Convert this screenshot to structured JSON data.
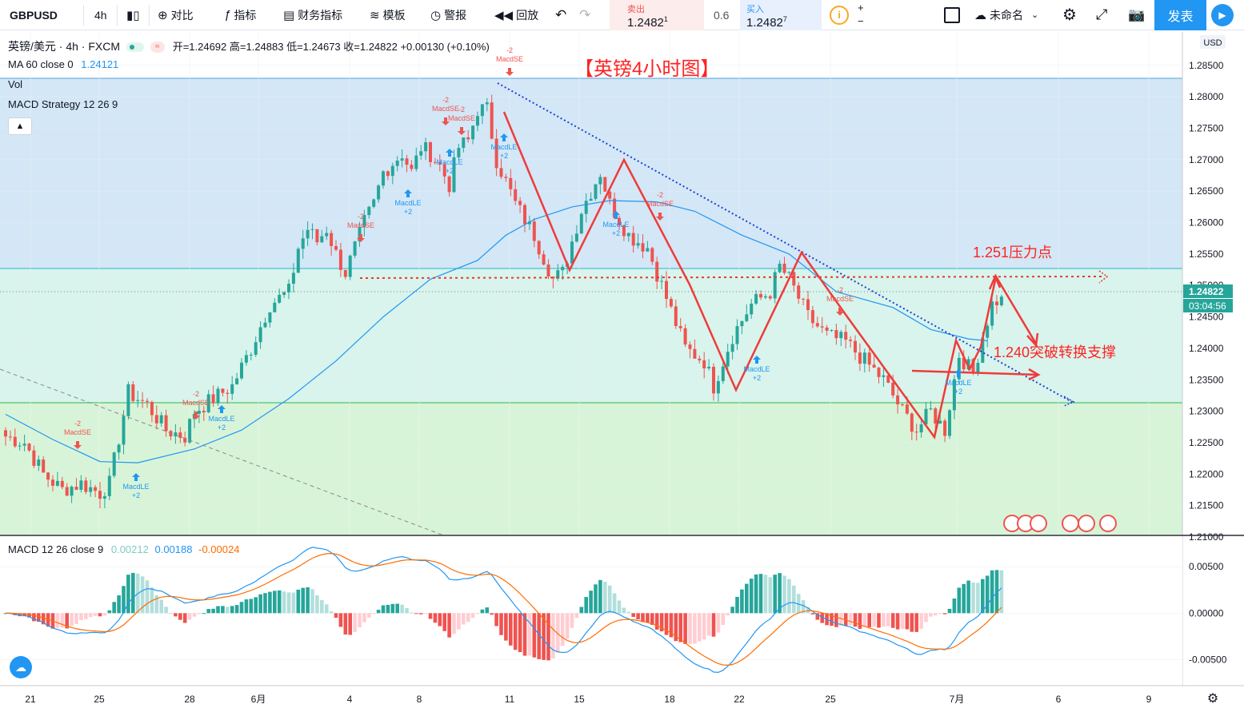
{
  "toolbar": {
    "symbol": "GBPUSD",
    "interval": "4h",
    "compare": "对比",
    "indicators": "指标",
    "financials": "财务指标",
    "templates": "模板",
    "alert": "警报",
    "replay": "回放",
    "sell_label": "卖出",
    "sell_price": "1.2482",
    "sell_sup": "1",
    "spread": "0.6",
    "buy_label": "买入",
    "buy_price": "1.2482",
    "buy_sup": "7",
    "layout_name": "未命名",
    "publish": "发表"
  },
  "legend": {
    "name": "英镑/美元 · 4h · FXCM",
    "ohlc": "开=1.24692 高=1.24883 低=1.24673 收=1.24822 +0.00130 (+0.10%)",
    "ma": "MA 60 close 0",
    "ma_value": "1.24121",
    "vol": "Vol",
    "strategy": "MACD Strategy 12 26 9",
    "macd": "MACD 12 26 close 9",
    "macd_v1": "0.00212",
    "macd_v2": "0.00188",
    "macd_v3": "-0.00024"
  },
  "annotations": {
    "title": "【英镑4小时图】",
    "resistance": "1.251压力点",
    "support": "1.240突破转换支撑"
  },
  "price_axis": {
    "currency": "USD",
    "ticks": [
      "1.28500",
      "1.28000",
      "1.27500",
      "1.27000",
      "1.26500",
      "1.26000",
      "1.25500",
      "1.25000",
      "1.24500",
      "1.24000",
      "1.23500",
      "1.23000",
      "1.22500",
      "1.22000",
      "1.21500",
      "1.21000"
    ],
    "current_price": "1.24822",
    "countdown": "03:04:56"
  },
  "macd_axis": {
    "ticks": [
      "0.00500",
      "0.00000",
      "-0.00500"
    ]
  },
  "time_axis": {
    "ticks": [
      "21",
      "25",
      "28",
      "6月",
      "4",
      "8",
      "11",
      "15",
      "18",
      "22",
      "25",
      "7月",
      "6",
      "9"
    ]
  },
  "colors": {
    "up": "#26a69a",
    "down": "#ef5350",
    "ma": "#2196f3",
    "annotation": "#ff2222",
    "trend": "#1e3fd8"
  },
  "markers": {
    "long": "MacdLE",
    "short": "MacdSE",
    "long_qty": "+2",
    "short_qty": "-2"
  },
  "chart_data": {
    "type": "candlestick",
    "symbol": "GBPUSD",
    "interval": "4h",
    "ylim": [
      1.21,
      1.2865
    ],
    "anchors": [
      [
        0,
        1.226
      ],
      [
        4,
        1.225
      ],
      [
        8,
        1.22
      ],
      [
        12,
        1.2175
      ],
      [
        16,
        1.2185
      ],
      [
        20,
        1.217
      ],
      [
        22,
        1.2185
      ],
      [
        26,
        1.233
      ],
      [
        30,
        1.231
      ],
      [
        34,
        1.227
      ],
      [
        38,
        1.226
      ],
      [
        40,
        1.23
      ],
      [
        44,
        1.232
      ],
      [
        48,
        1.234
      ],
      [
        52,
        1.24
      ],
      [
        56,
        1.247
      ],
      [
        60,
        1.249
      ],
      [
        62,
        1.256
      ],
      [
        64,
        1.259
      ],
      [
        66,
        1.257
      ],
      [
        68,
        1.259
      ],
      [
        70,
        1.255
      ],
      [
        72,
        1.252
      ],
      [
        76,
        1.26
      ],
      [
        78,
        1.263
      ],
      [
        80,
        1.268
      ],
      [
        84,
        1.271
      ],
      [
        86,
        1.268
      ],
      [
        88,
        1.272
      ],
      [
        90,
        1.271
      ],
      [
        92,
        1.269
      ],
      [
        94,
        1.266
      ],
      [
        96,
        1.272
      ],
      [
        98,
        1.273
      ],
      [
        100,
        1.278
      ],
      [
        102,
        1.278
      ],
      [
        104,
        1.27
      ],
      [
        108,
        1.263
      ],
      [
        112,
        1.258
      ],
      [
        116,
        1.251
      ],
      [
        118,
        1.252
      ],
      [
        122,
        1.262
      ],
      [
        126,
        1.268
      ],
      [
        128,
        1.263
      ],
      [
        132,
        1.258
      ],
      [
        136,
        1.256
      ],
      [
        140,
        1.248
      ],
      [
        144,
        1.24
      ],
      [
        148,
        1.238
      ],
      [
        150,
        1.234
      ],
      [
        154,
        1.242
      ],
      [
        158,
        1.247
      ],
      [
        162,
        1.249
      ],
      [
        164,
        1.253
      ],
      [
        166,
        1.251
      ],
      [
        170,
        1.245
      ],
      [
        174,
        1.242
      ],
      [
        178,
        1.241
      ],
      [
        182,
        1.238
      ],
      [
        186,
        1.235
      ],
      [
        190,
        1.23
      ],
      [
        193,
        1.227
      ],
      [
        196,
        1.23
      ],
      [
        199,
        1.227
      ],
      [
        202,
        1.239
      ],
      [
        205,
        1.236
      ],
      [
        207,
        1.242
      ],
      [
        209,
        1.247
      ],
      [
        211,
        1.2482
      ]
    ],
    "ma60": [
      [
        0,
        1.2295
      ],
      [
        10,
        1.2255
      ],
      [
        20,
        1.222
      ],
      [
        28,
        1.2218
      ],
      [
        40,
        1.224
      ],
      [
        50,
        1.227
      ],
      [
        60,
        1.232
      ],
      [
        70,
        1.238
      ],
      [
        80,
        1.245
      ],
      [
        90,
        1.251
      ],
      [
        100,
        1.254
      ],
      [
        106,
        1.258
      ],
      [
        112,
        1.2605
      ],
      [
        120,
        1.2625
      ],
      [
        128,
        1.2635
      ],
      [
        138,
        1.2633
      ],
      [
        146,
        1.2618
      ],
      [
        156,
        1.258
      ],
      [
        166,
        1.255
      ],
      [
        176,
        1.249
      ],
      [
        188,
        1.2465
      ],
      [
        196,
        1.243
      ],
      [
        204,
        1.2415
      ],
      [
        208,
        1.2412
      ]
    ],
    "resistance_level": 1.2505,
    "last_close": 1.24822
  }
}
